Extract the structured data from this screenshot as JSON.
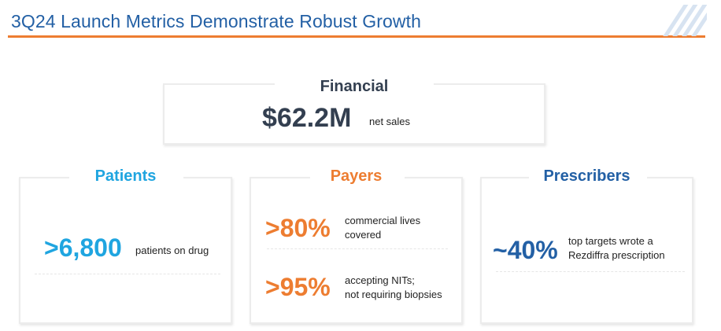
{
  "title": "3Q24 Launch Metrics Demonstrate Robust Growth",
  "colors": {
    "title": "#2360a5",
    "accent_rule": "#ed7d31",
    "patients": "#1fa5e0",
    "payers": "#ed7d31",
    "prescribers": "#2360a5",
    "financial_value": "#333f50"
  },
  "financial": {
    "heading": "Financial",
    "value": "$62.2M",
    "description": "net sales"
  },
  "patients": {
    "heading": "Patients",
    "value": ">6,800",
    "description": "patients on drug"
  },
  "payers": {
    "heading": "Payers",
    "metrics": [
      {
        "value": ">80%",
        "description": "commercial lives\ncovered"
      },
      {
        "value": ">95%",
        "description": "accepting NITs;\nnot requiring biopsies"
      }
    ]
  },
  "prescribers": {
    "heading": "Prescribers",
    "value": "~40%",
    "description": "top targets wrote a\nRezdiffra prescription"
  }
}
